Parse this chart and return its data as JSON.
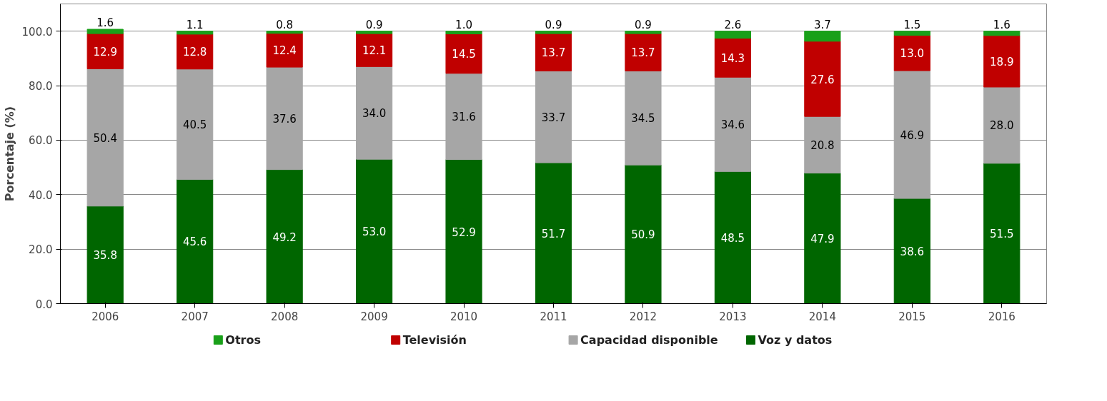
{
  "chart_data": {
    "type": "bar",
    "stacked": true,
    "ylabel": "Porcentaje (%)",
    "categories": [
      "2006",
      "2007",
      "2008",
      "2009",
      "2010",
      "2011",
      "2012",
      "2013",
      "2014",
      "2015",
      "2016"
    ],
    "series": [
      {
        "name": "Voz y datos",
        "color": "#006600",
        "values": [
          35.8,
          45.6,
          49.2,
          53.0,
          52.9,
          51.7,
          50.9,
          48.5,
          47.9,
          38.6,
          51.5
        ],
        "value_labels": [
          "35.8",
          "45.6",
          "49.2",
          "53.0",
          "52.9",
          "51.7",
          "50.9",
          "48.5",
          "47.9",
          "38.6",
          "51.5"
        ]
      },
      {
        "name": "Capacidad disponible",
        "color": "#a6a6a6",
        "values": [
          50.4,
          40.5,
          37.6,
          34.0,
          31.6,
          33.7,
          34.5,
          34.6,
          20.8,
          46.9,
          28.0
        ],
        "value_labels": [
          "50.4",
          "40.5",
          "37.6",
          "34.0",
          "31.6",
          "33.7",
          "34.5",
          "34.6",
          "20.8",
          "46.9",
          "28.0"
        ]
      },
      {
        "name": "Televisión",
        "color": "#c00000",
        "values": [
          12.9,
          12.8,
          12.4,
          12.1,
          14.5,
          13.7,
          13.7,
          14.3,
          27.6,
          13.0,
          18.9
        ],
        "value_labels": [
          "12.9",
          "12.8",
          "12.4",
          "12.1",
          "14.5",
          "13.7",
          "13.7",
          "14.3",
          "27.6",
          "13.0",
          "18.9"
        ]
      },
      {
        "name": "Otros",
        "color": "#19a019",
        "values": [
          1.6,
          1.1,
          0.8,
          0.9,
          1.0,
          0.9,
          0.9,
          2.6,
          3.7,
          1.5,
          1.6
        ],
        "value_labels": [
          "1.6",
          "1.1",
          "0.8",
          "0.9",
          "1.0",
          "0.9",
          "0.9",
          "2.6",
          "3.7",
          "1.5",
          "1.6"
        ]
      }
    ],
    "ylim": [
      0,
      110
    ],
    "yticks": [
      {
        "value": 0,
        "label": "0.0"
      },
      {
        "value": 20,
        "label": "20.0"
      },
      {
        "value": 40,
        "label": "40.0"
      },
      {
        "value": 60,
        "label": "60.0"
      },
      {
        "value": 80,
        "label": "80.0"
      },
      {
        "value": 100,
        "label": "100.0"
      }
    ],
    "grid": "y",
    "legend": "bottom"
  }
}
